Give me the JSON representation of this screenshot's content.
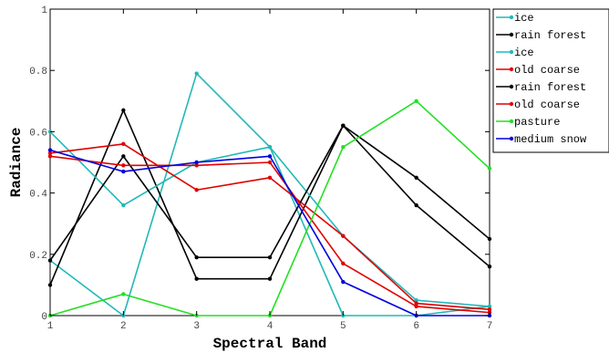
{
  "chart_data": {
    "type": "line",
    "title": "",
    "xlabel": "Spectral Band",
    "ylabel": "Radiance",
    "xlim": [
      1,
      7
    ],
    "ylim": [
      0,
      1
    ],
    "xticks": [
      "1",
      "2",
      "3",
      "4",
      "5",
      "6",
      "7"
    ],
    "yticks": [
      "0",
      "0.2",
      "0.4",
      "0.6",
      "0.8",
      "1"
    ],
    "grid": false,
    "legend_position": "top-right, outside plot",
    "x": [
      1,
      2,
      3,
      4,
      5,
      6,
      7
    ],
    "series": [
      {
        "name": "ice",
        "color": "#22b8b8",
        "values": [
          0.18,
          0.0,
          0.79,
          0.55,
          0.0,
          0.0,
          0.03
        ]
      },
      {
        "name": "rain forest",
        "color": "#000000",
        "values": [
          0.1,
          0.67,
          0.12,
          0.12,
          0.62,
          0.45,
          0.25
        ]
      },
      {
        "name": "ice",
        "color": "#22b8b8",
        "values": [
          0.6,
          0.36,
          0.5,
          0.55,
          0.26,
          0.05,
          0.03
        ]
      },
      {
        "name": "old coarse",
        "color": "#e00000",
        "values": [
          0.53,
          0.56,
          0.41,
          0.45,
          0.26,
          0.04,
          0.02
        ]
      },
      {
        "name": "rain forest",
        "color": "#000000",
        "values": [
          0.18,
          0.52,
          0.19,
          0.19,
          0.62,
          0.36,
          0.16
        ]
      },
      {
        "name": "old coarse",
        "color": "#e00000",
        "values": [
          0.52,
          0.49,
          0.49,
          0.5,
          0.17,
          0.03,
          0.01
        ]
      },
      {
        "name": "pasture",
        "color": "#22e022",
        "values": [
          0.0,
          0.07,
          0.0,
          0.0,
          0.55,
          0.7,
          0.48
        ]
      },
      {
        "name": "medium snow",
        "color": "#0000e0",
        "values": [
          0.54,
          0.47,
          0.5,
          0.52,
          0.11,
          0.0,
          0.0
        ]
      }
    ]
  }
}
